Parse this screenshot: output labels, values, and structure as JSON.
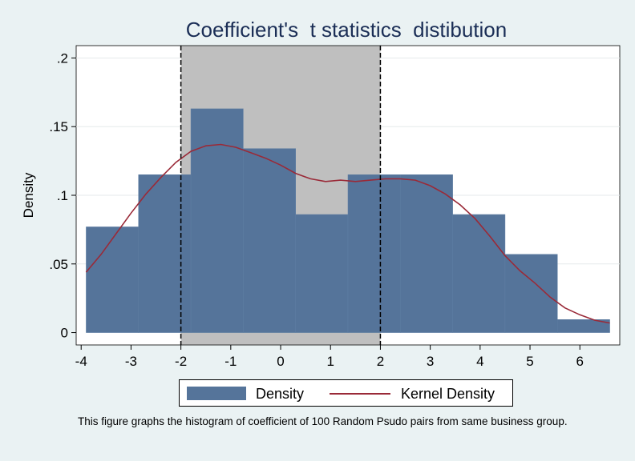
{
  "chart_data": {
    "type": "bar",
    "title": "Coefficient's  t statistics  distibution",
    "xlabel": "",
    "ylabel": "Density",
    "xlim": [
      -4.1,
      6.8
    ],
    "ylim": [
      -0.009,
      0.209
    ],
    "x_ticks": [
      -4,
      -3,
      -2,
      -1,
      0,
      1,
      2,
      3,
      4,
      5,
      6
    ],
    "y_ticks": [
      0,
      0.05,
      0.1,
      0.15,
      0.2
    ],
    "y_tick_labels": [
      "0",
      ".05",
      ".1",
      ".15",
      ".2"
    ],
    "grid": true,
    "shaded_region": {
      "x_start": -2,
      "x_end": 2,
      "color": "#bfbfbf"
    },
    "reference_lines": [
      -2,
      2
    ],
    "histogram": {
      "name": "Density",
      "color": "#55749a",
      "bins": [
        {
          "x0": -3.9,
          "x1": -2.85,
          "density": 0.077
        },
        {
          "x0": -2.85,
          "x1": -1.8,
          "density": 0.115
        },
        {
          "x0": -1.8,
          "x1": -0.75,
          "density": 0.163
        },
        {
          "x0": -0.75,
          "x1": 0.3,
          "density": 0.134
        },
        {
          "x0": 0.3,
          "x1": 1.35,
          "density": 0.086
        },
        {
          "x0": 1.35,
          "x1": 2.4,
          "density": 0.115
        },
        {
          "x0": 2.4,
          "x1": 3.45,
          "density": 0.115
        },
        {
          "x0": 3.45,
          "x1": 4.5,
          "density": 0.086
        },
        {
          "x0": 4.5,
          "x1": 5.55,
          "density": 0.057
        },
        {
          "x0": 5.55,
          "x1": 6.6,
          "density": 0.0095
        }
      ]
    },
    "kernel_density": {
      "name": "Kernel Density",
      "color": "#9a2a38",
      "x": [
        -3.9,
        -3.6,
        -3.3,
        -3.0,
        -2.7,
        -2.4,
        -2.1,
        -1.8,
        -1.5,
        -1.2,
        -0.9,
        -0.6,
        -0.3,
        0.0,
        0.3,
        0.6,
        0.9,
        1.2,
        1.5,
        1.8,
        2.1,
        2.4,
        2.7,
        3.0,
        3.3,
        3.6,
        3.9,
        4.2,
        4.5,
        4.8,
        5.1,
        5.4,
        5.7,
        6.0,
        6.3,
        6.6
      ],
      "y": [
        0.044,
        0.057,
        0.072,
        0.087,
        0.101,
        0.113,
        0.124,
        0.132,
        0.136,
        0.137,
        0.135,
        0.131,
        0.127,
        0.122,
        0.116,
        0.112,
        0.11,
        0.111,
        0.11,
        0.111,
        0.112,
        0.112,
        0.111,
        0.107,
        0.101,
        0.093,
        0.083,
        0.07,
        0.056,
        0.045,
        0.036,
        0.026,
        0.018,
        0.013,
        0.009,
        0.007
      ]
    },
    "legend": {
      "position": "bottom",
      "entries": [
        "Density",
        "Kernel Density"
      ]
    }
  },
  "caption": "This figure graphs the histogram of coefficient of 100 Random Psudo pairs from same business group."
}
